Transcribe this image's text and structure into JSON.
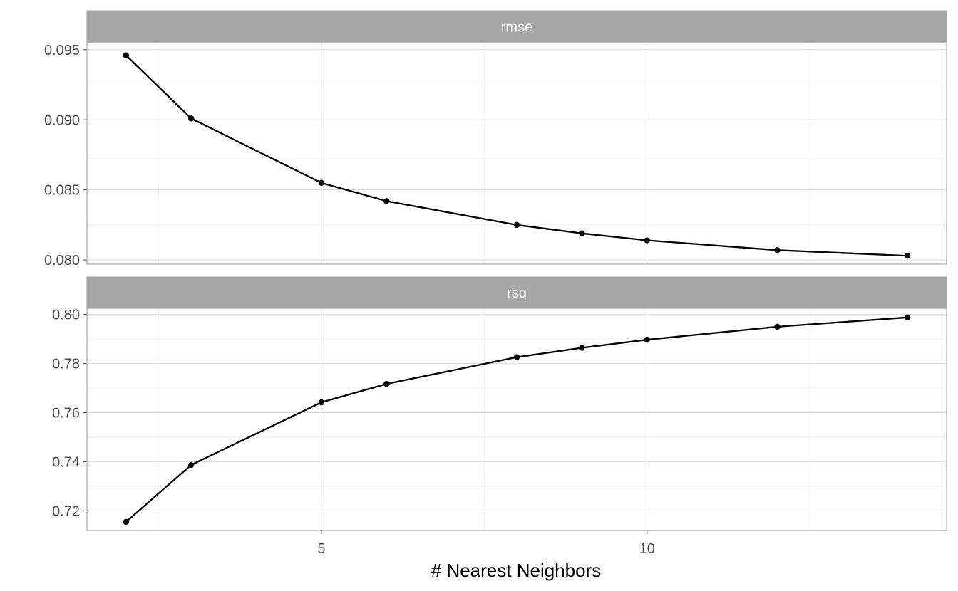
{
  "chart_data": {
    "type": "line",
    "xlabel": "# Nearest Neighbors",
    "x_ticks": [
      5,
      10
    ],
    "xlim": [
      1.4,
      14.6
    ],
    "series_color": "#000000",
    "strip_color": "#a6a6a6",
    "panels": [
      {
        "strip": "rmse",
        "ylim": [
          0.0797,
          0.0955
        ],
        "y_ticks": [
          0.08,
          0.085,
          0.09,
          0.095
        ],
        "y_tick_labels": [
          "0.080",
          "0.085",
          "0.090",
          "0.095"
        ],
        "points": [
          {
            "x": 2,
            "y": 0.0946
          },
          {
            "x": 3,
            "y": 0.0901
          },
          {
            "x": 5,
            "y": 0.0855
          },
          {
            "x": 6,
            "y": 0.0842
          },
          {
            "x": 8,
            "y": 0.0825
          },
          {
            "x": 9,
            "y": 0.0819
          },
          {
            "x": 10,
            "y": 0.0814
          },
          {
            "x": 12,
            "y": 0.0807
          },
          {
            "x": 14,
            "y": 0.0803
          }
        ]
      },
      {
        "strip": "rsq",
        "ylim": [
          0.712,
          0.8025
        ],
        "y_ticks": [
          0.72,
          0.74,
          0.76,
          0.78,
          0.8
        ],
        "y_tick_labels": [
          "0.72",
          "0.74",
          "0.76",
          "0.78",
          "0.80"
        ],
        "points": [
          {
            "x": 2,
            "y": 0.7155
          },
          {
            "x": 3,
            "y": 0.7387
          },
          {
            "x": 5,
            "y": 0.7642
          },
          {
            "x": 6,
            "y": 0.7717
          },
          {
            "x": 8,
            "y": 0.7826
          },
          {
            "x": 9,
            "y": 0.7864
          },
          {
            "x": 10,
            "y": 0.7897
          },
          {
            "x": 12,
            "y": 0.795
          },
          {
            "x": 14,
            "y": 0.7988
          }
        ]
      }
    ]
  }
}
